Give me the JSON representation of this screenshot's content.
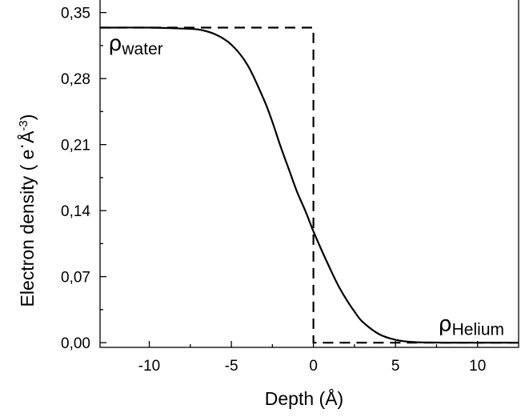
{
  "chart_data": {
    "type": "line",
    "xlabel": "Depth (Å)",
    "ylabel_main": "Electron density ( e",
    "ylabel_dot": "·",
    "ylabel_unit": "Å",
    "ylabel_exp": "-3",
    "ylabel_close": ")",
    "xlim": [
      -13,
      12.5
    ],
    "ylim": [
      -0.005,
      0.365
    ],
    "x_ticks": [
      -10,
      -5,
      0,
      5,
      10
    ],
    "x_tick_labels": [
      "-10",
      "-5",
      "0",
      "5",
      "10"
    ],
    "y_ticks": [
      0.0,
      0.07,
      0.14,
      0.21,
      0.28,
      0.35
    ],
    "y_tick_labels": [
      "0,00",
      "0,07",
      "0,14",
      "0,21",
      "0,28",
      "0,35"
    ],
    "grid": false,
    "series": [
      {
        "style": "solid",
        "x": [
          -13,
          -10,
          -8,
          -7,
          -6,
          -5,
          -4,
          -3,
          -2.5,
          -2,
          -1.5,
          -1,
          -0.5,
          0,
          0.5,
          1,
          1.5,
          2,
          2.5,
          3,
          4,
          5,
          6,
          7,
          8,
          10,
          12.5
        ],
        "y": [
          0.334,
          0.334,
          0.333,
          0.332,
          0.327,
          0.316,
          0.294,
          0.257,
          0.234,
          0.208,
          0.184,
          0.16,
          0.14,
          0.118,
          0.098,
          0.079,
          0.061,
          0.046,
          0.033,
          0.022,
          0.009,
          0.003,
          0.0007,
          0.0002,
          0.0,
          0.0,
          0.0
        ]
      },
      {
        "style": "dashed",
        "x": [
          -13,
          0,
          0,
          12.5
        ],
        "y": [
          0.334,
          0.334,
          0.0,
          0.0
        ]
      }
    ],
    "annotations": [
      {
        "symbol": "ρ",
        "subscript": "water",
        "x": -12.5,
        "y": 0.31
      },
      {
        "symbol": "ρ",
        "subscript": "Helium",
        "x": 7.6,
        "y": 0.004
      }
    ]
  }
}
